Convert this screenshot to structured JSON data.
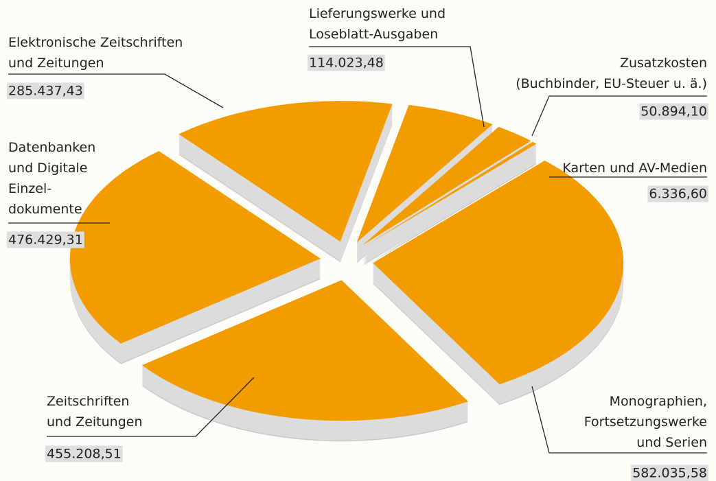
{
  "chart_data": {
    "type": "pie",
    "categories": [
      "Monographien,\nFortsetzungswerke\nund Serien",
      "Zeitschriften\nund Zeitungen",
      "Datenbanken\nund Digitale\nEinzel-\ndokumente",
      "Elektronische Zeitschriften\nund Zeitungen",
      "Lieferungswerke und\nLoseblatt-Ausgaben",
      "Zusatzkosten\n(Buchbinder, EU-Steuer u. ä.)",
      "Karten und AV-Medien"
    ],
    "values": [
      582035.58,
      455208.51,
      476429.31,
      285437.43,
      114023.48,
      50894.1,
      6336.6
    ],
    "value_labels": [
      "582.035,58",
      "455.208,51",
      "476.429,31",
      "285.437,43",
      "114.023,48",
      "50.894,10",
      "6.336,60"
    ],
    "color": "#f39c00"
  }
}
